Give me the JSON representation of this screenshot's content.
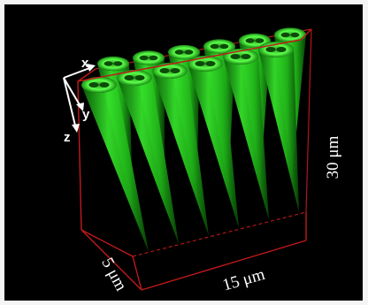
{
  "axes": {
    "x": "x",
    "y": "y",
    "z": "z"
  },
  "scale_labels": {
    "height": "30 μm",
    "width": "15 μm",
    "depth": "5 μm"
  }
}
